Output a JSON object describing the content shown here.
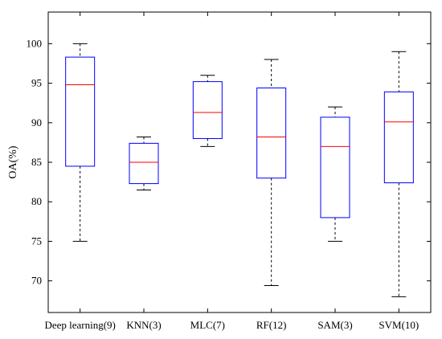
{
  "chart_data": {
    "type": "box",
    "title": "",
    "xlabel": "",
    "ylabel": "OA(%)",
    "ylim": [
      66,
      104
    ],
    "yticks": [
      70,
      75,
      80,
      85,
      90,
      95,
      100
    ],
    "categories": [
      "Deep learning(9)",
      "KNN(3)",
      "MLC(7)",
      "RF(12)",
      "SAM(3)",
      "SVM(10)"
    ],
    "boxes": [
      {
        "min": 75.0,
        "q1": 84.5,
        "median": 94.8,
        "q3": 98.3,
        "max": 100.0
      },
      {
        "min": 81.5,
        "q1": 82.3,
        "median": 85.0,
        "q3": 87.4,
        "max": 88.2
      },
      {
        "min": 87.0,
        "q1": 88.0,
        "median": 91.3,
        "q3": 95.2,
        "max": 96.0
      },
      {
        "min": 69.4,
        "q1": 83.0,
        "median": 88.2,
        "q3": 94.4,
        "max": 98.0
      },
      {
        "min": 75.0,
        "q1": 78.0,
        "median": 87.0,
        "q3": 90.7,
        "max": 92.0
      },
      {
        "min": 68.0,
        "q1": 82.4,
        "median": 90.1,
        "q3": 93.9,
        "max": 99.0
      }
    ],
    "grid": false,
    "colors": {
      "box": "#0000ff",
      "median": "#ff0000",
      "whisker": "#000000",
      "axis": "#000000"
    }
  }
}
